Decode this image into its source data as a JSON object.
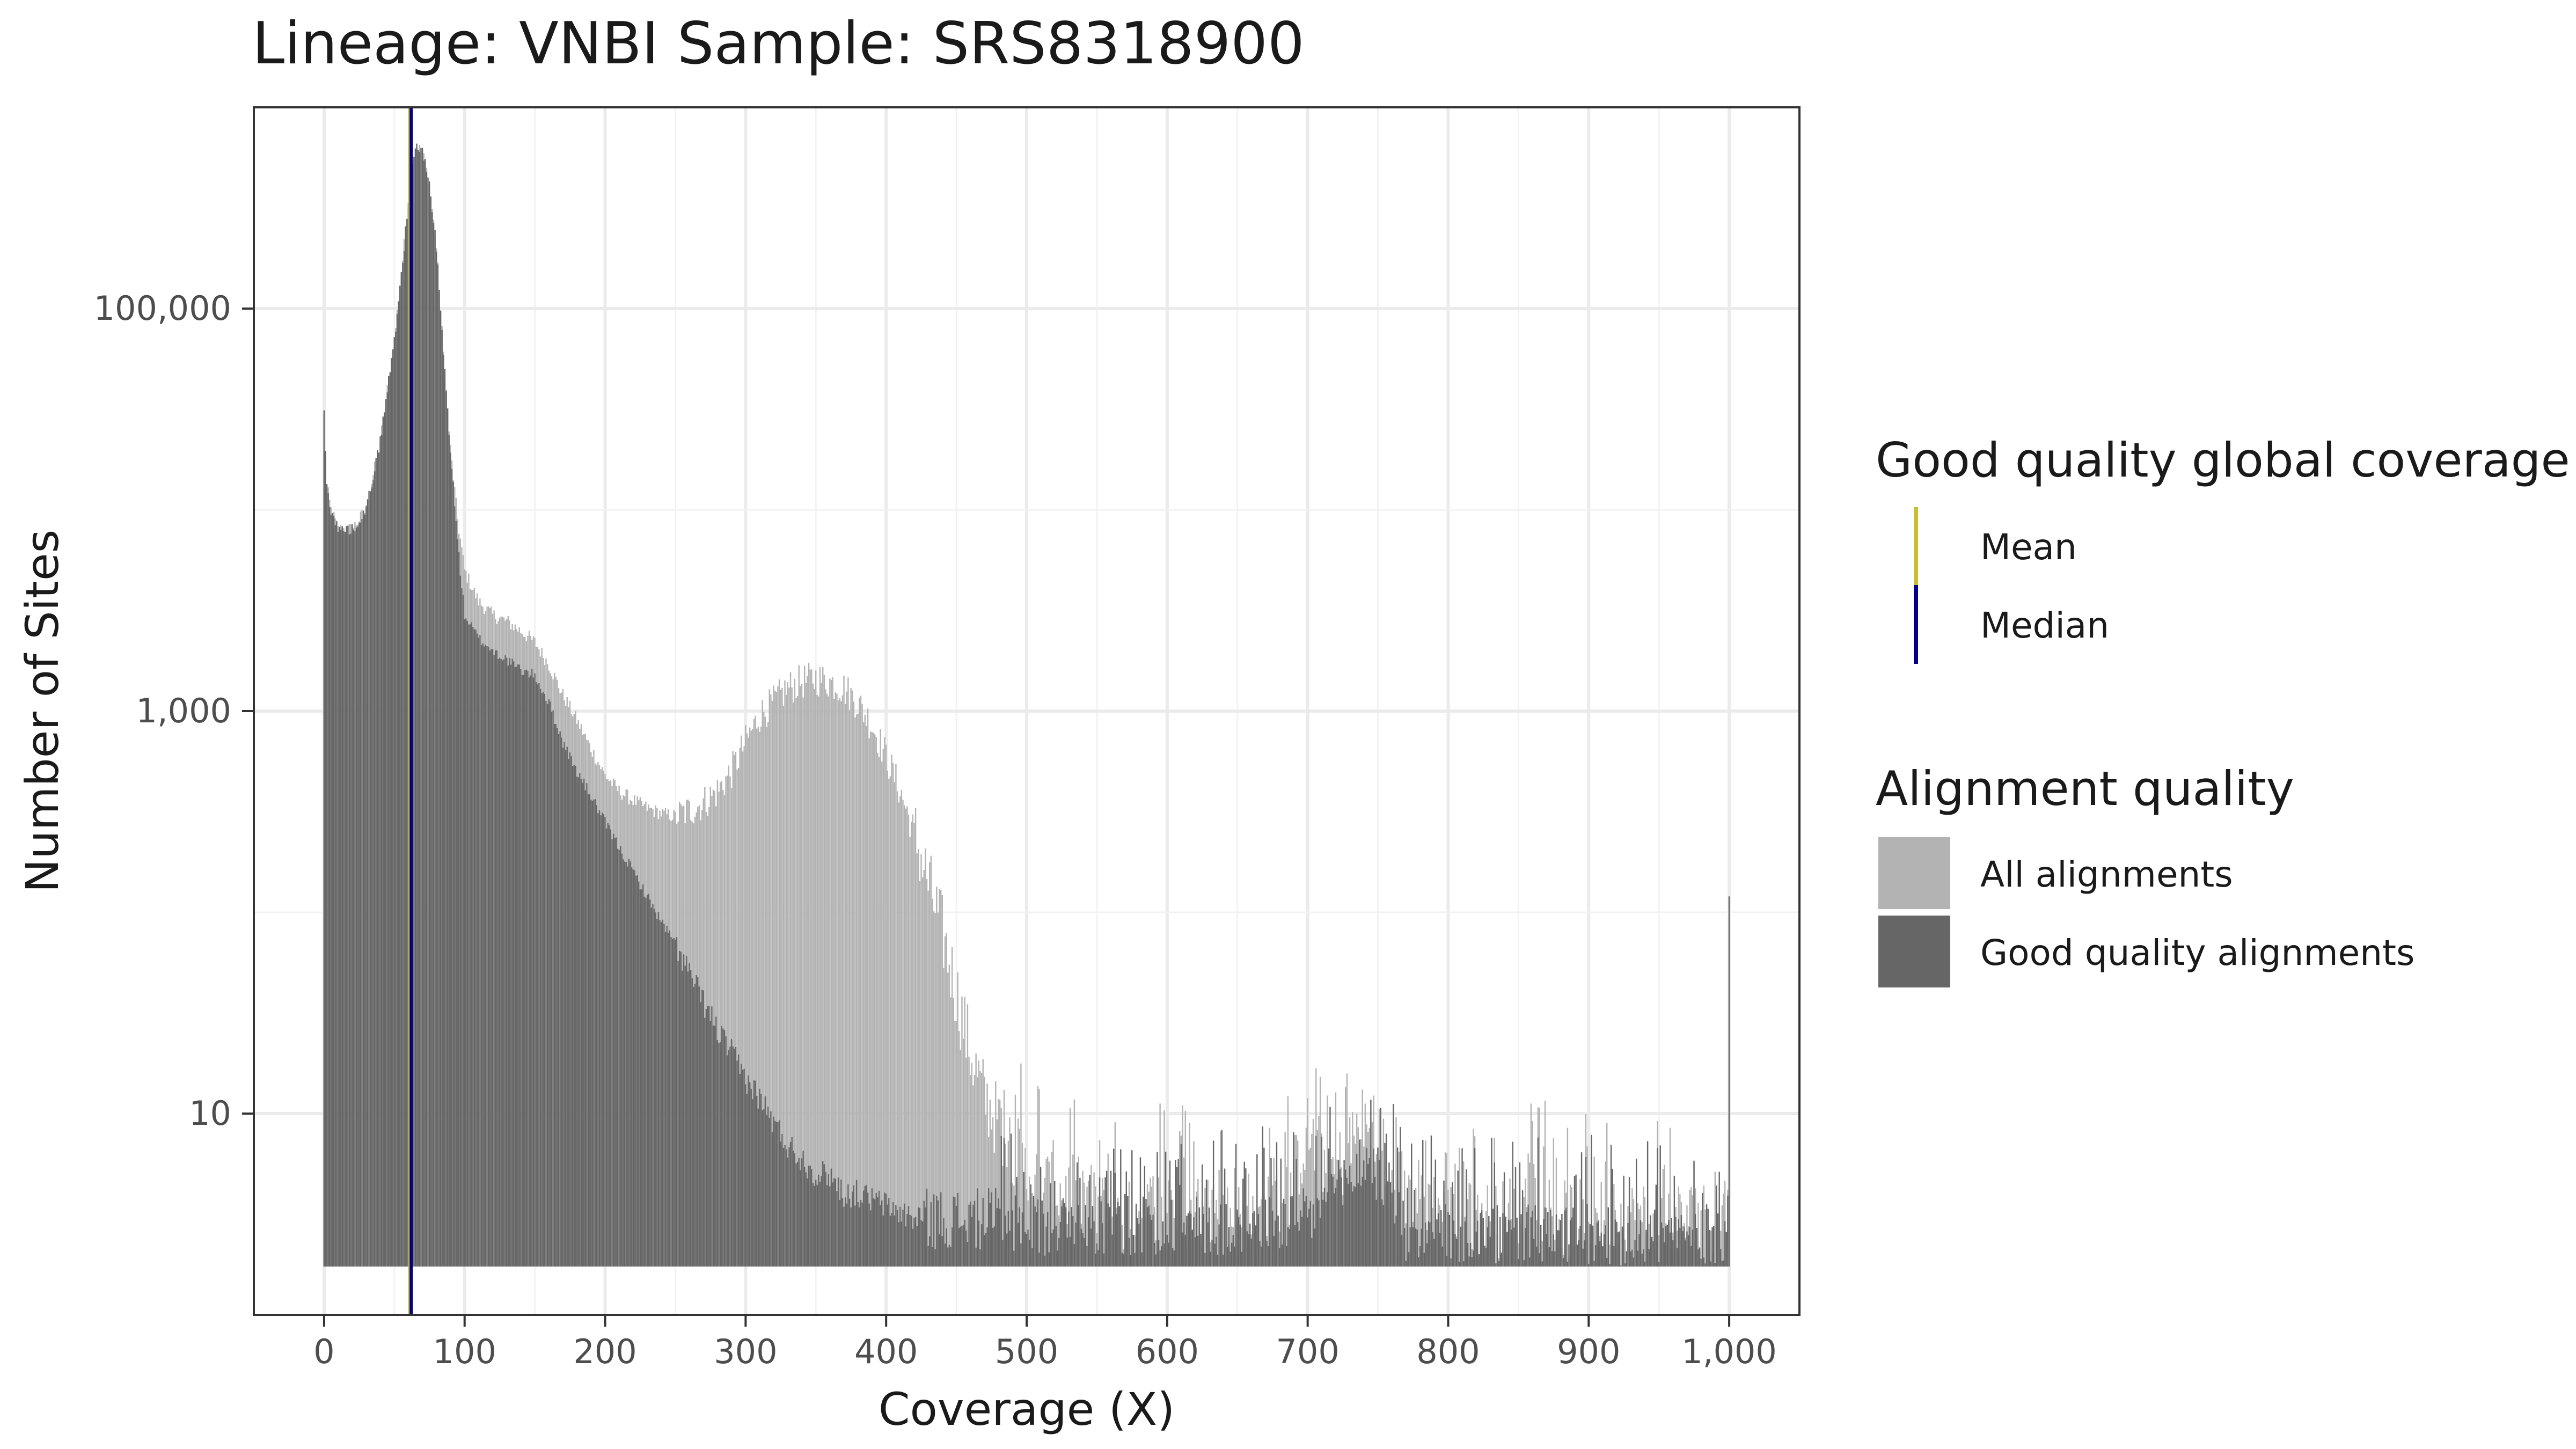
{
  "chart_data": {
    "type": "bar",
    "title": "Lineage: VNBI  Sample: SRS8318900",
    "xlabel": "Coverage (X)",
    "ylabel": "Number of Sites",
    "x_scale": "linear",
    "y_scale": "log10",
    "xlim": [
      -50,
      1050
    ],
    "ylim": [
      1,
      1000000
    ],
    "x_ticks": [
      {
        "value": 0,
        "label": "0"
      },
      {
        "value": 100,
        "label": "100"
      },
      {
        "value": 200,
        "label": "200"
      },
      {
        "value": 300,
        "label": "300"
      },
      {
        "value": 400,
        "label": "400"
      },
      {
        "value": 500,
        "label": "500"
      },
      {
        "value": 600,
        "label": "600"
      },
      {
        "value": 700,
        "label": "700"
      },
      {
        "value": 800,
        "label": "800"
      },
      {
        "value": 900,
        "label": "900"
      },
      {
        "value": 1000,
        "label": "1,000"
      }
    ],
    "y_ticks": [
      {
        "value": 10,
        "label": "10"
      },
      {
        "value": 1000,
        "label": "1,000"
      },
      {
        "value": 100000,
        "label": "100,000"
      }
    ],
    "grid": true,
    "legend_position": "right",
    "series": [
      {
        "name": "All alignments",
        "color": "#b3b3b3",
        "x": [
          0,
          2,
          5,
          10,
          20,
          30,
          40,
          50,
          55,
          60,
          65,
          70,
          75,
          80,
          85,
          90,
          95,
          100,
          110,
          120,
          130,
          140,
          150,
          160,
          170,
          180,
          190,
          200,
          210,
          220,
          230,
          240,
          250,
          260,
          270,
          280,
          290,
          300,
          310,
          320,
          330,
          340,
          350,
          360,
          370,
          380,
          390,
          400,
          410,
          420,
          430,
          440,
          450,
          460,
          470,
          480,
          490,
          500,
          520,
          540,
          560,
          580,
          600,
          620,
          640,
          660,
          680,
          700,
          710,
          720,
          730,
          740,
          750,
          760,
          780,
          800,
          820,
          840,
          860,
          880,
          900,
          920,
          940,
          960,
          980,
          999,
          1000
        ],
        "y": [
          30000,
          13000,
          10000,
          8000,
          8000,
          10000,
          22000,
          70000,
          150000,
          330000,
          650000,
          600000,
          420000,
          200000,
          60000,
          20000,
          9000,
          5000,
          3500,
          3000,
          2800,
          2500,
          2200,
          1700,
          1200,
          900,
          650,
          480,
          400,
          360,
          330,
          310,
          300,
          320,
          350,
          400,
          500,
          700,
          950,
          1100,
          1300,
          1400,
          1450,
          1400,
          1300,
          1100,
          850,
          600,
          400,
          250,
          140,
          80,
          40,
          20,
          12,
          9,
          7,
          5,
          4,
          4,
          3,
          3,
          4,
          3,
          3,
          3,
          3,
          8,
          6,
          5,
          7,
          9,
          6,
          3,
          4,
          3,
          3,
          3,
          4,
          3,
          3,
          3,
          3,
          3,
          3,
          3,
          120
        ]
      },
      {
        "name": "Good quality alignments",
        "color": "#666666",
        "x": [
          0,
          2,
          5,
          10,
          20,
          30,
          40,
          50,
          55,
          60,
          65,
          70,
          75,
          80,
          85,
          90,
          95,
          100,
          110,
          120,
          130,
          140,
          150,
          160,
          170,
          180,
          190,
          200,
          210,
          220,
          230,
          240,
          250,
          260,
          270,
          280,
          290,
          300,
          310,
          320,
          330,
          340,
          350,
          360,
          370,
          380,
          400,
          420,
          440,
          460,
          480,
          500,
          540,
          580,
          620,
          660,
          700,
          720,
          740,
          760,
          770,
          800,
          850,
          900,
          950,
          999,
          1000
        ],
        "y": [
          30000,
          13000,
          10000,
          8000,
          8000,
          10000,
          22000,
          70000,
          150000,
          330000,
          650000,
          600000,
          420000,
          200000,
          60000,
          20000,
          7000,
          3000,
          2300,
          2000,
          1800,
          1600,
          1500,
          1100,
          700,
          500,
          380,
          280,
          210,
          160,
          120,
          90,
          70,
          50,
          36,
          26,
          20,
          15,
          12,
          9,
          7,
          6,
          5,
          5,
          4,
          4,
          3.5,
          3,
          3,
          3,
          3,
          2.8,
          2.8,
          2.8,
          2.8,
          2.8,
          3,
          4,
          6,
          4,
          2.5,
          2.5,
          2.5,
          2.5,
          2.5,
          2.5,
          120
        ]
      }
    ],
    "reference_lines": [
      {
        "name": "Mean",
        "x": 61,
        "color": "#c9bd30"
      },
      {
        "name": "Median",
        "x": 62,
        "color": "#00008b"
      }
    ]
  },
  "legend": {
    "coverage_title": "Good quality global coverage",
    "coverage_items": [
      {
        "label": "Mean",
        "color": "#c9bd30"
      },
      {
        "label": "Median",
        "color": "#00008b"
      }
    ],
    "quality_title": "Alignment quality",
    "quality_items": [
      {
        "label": "All alignments",
        "color": "#b3b3b3"
      },
      {
        "label": "Good quality alignments",
        "color": "#666666"
      }
    ]
  }
}
